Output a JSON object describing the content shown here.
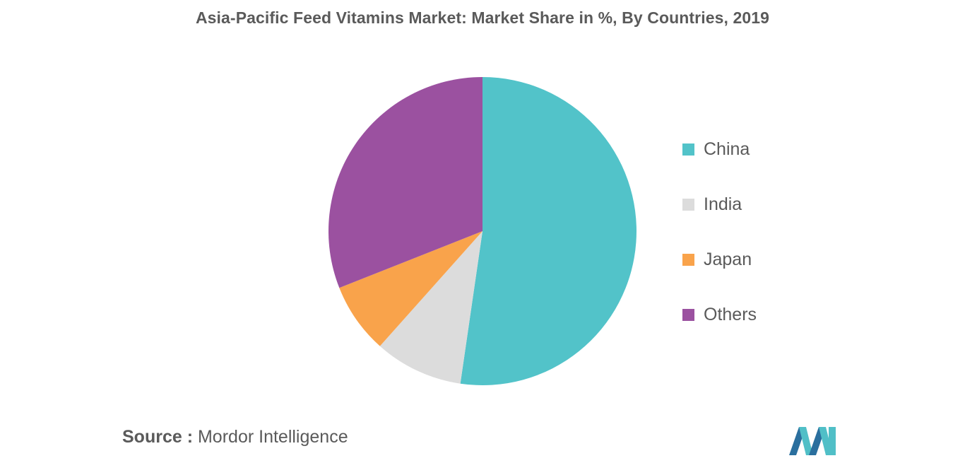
{
  "header": {
    "title": "Asia-Pacific Feed Vitamins Market: Market Share in %, By Countries, 2019"
  },
  "chart_data": {
    "type": "pie",
    "title": "Asia-Pacific Feed Vitamins Market: Market Share in %, By Countries, 2019",
    "start_angle_deg": 0,
    "direction": "clockwise",
    "legend_position": "right",
    "slices": [
      {
        "label": "China",
        "value": 52.3,
        "color": "#52c3c9"
      },
      {
        "label": "India",
        "value": 9.3,
        "color": "#dcdcdc"
      },
      {
        "label": "Japan",
        "value": 7.4,
        "color": "#f9a34b"
      },
      {
        "label": "Others",
        "value": 31.0,
        "color": "#9b51a0"
      }
    ]
  },
  "footer": {
    "source_key": "Source :",
    "source_value": "Mordor Intelligence"
  },
  "logo": {
    "icon": "mordor-intelligence-logo-icon",
    "colors": [
      "#2a6f9e",
      "#50bfc7"
    ]
  }
}
